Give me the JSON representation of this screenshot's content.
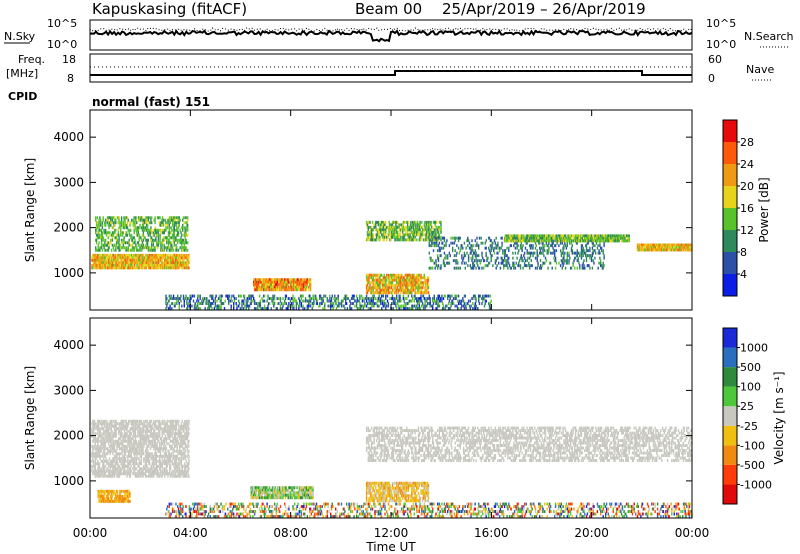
{
  "header": {
    "radar": "Kapuskasing (fitACF)",
    "beam": "Beam 00",
    "dates": "25/Apr/2019 – 26/Apr/2019"
  },
  "mini_panels": {
    "nsky_label": "N.Sky",
    "nsearch_label": "N.Search",
    "nsky_ticks": [
      "10^5",
      "10^0"
    ],
    "freq_label_1": "Freq.",
    "freq_label_2": "[MHz]",
    "freq_ticks": [
      "18",
      "8"
    ],
    "nave_label": "Nave",
    "nave_ticks": [
      "60",
      "0"
    ],
    "cpid_label": "CPID",
    "cpid_value": "normal (fast) 151"
  },
  "chart_data": [
    {
      "type": "heatmap",
      "name": "power",
      "ylabel": "Slant Range [km]",
      "xlabel": "Time UT",
      "yticks": [
        1000,
        2000,
        3000,
        4000
      ],
      "ylim": [
        180,
        4600
      ],
      "xlim_hours": [
        0,
        24
      ],
      "xticks": [
        "00:00",
        "04:00",
        "08:00",
        "12:00",
        "16:00",
        "20:00",
        "00:00"
      ],
      "colorbar": {
        "label": "Power [dB]",
        "ticks": [
          "4",
          "8",
          "12",
          "16",
          "20",
          "24",
          "28"
        ],
        "range": [
          0,
          30
        ],
        "colors": [
          "#0a1ee6",
          "#2a50a8",
          "#2e8a5a",
          "#58c22a",
          "#e6d41a",
          "#f09a14",
          "#ff5a0a",
          "#e60a0a"
        ]
      },
      "regions": [
        {
          "t0": 0.05,
          "t1": 3.95,
          "r0": 1080,
          "r1": 1420,
          "v0": 14,
          "v1": 24,
          "density": 0.85
        },
        {
          "t0": 0.2,
          "t1": 3.9,
          "r0": 1450,
          "r1": 2250,
          "v0": 8,
          "v1": 16,
          "density": 0.45
        },
        {
          "t0": 6.5,
          "t1": 8.8,
          "r0": 600,
          "r1": 880,
          "v0": 14,
          "v1": 28,
          "density": 0.85
        },
        {
          "t0": 11.0,
          "t1": 13.5,
          "r0": 520,
          "r1": 980,
          "v0": 12,
          "v1": 26,
          "density": 0.7
        },
        {
          "t0": 11.0,
          "t1": 14.0,
          "r0": 1700,
          "r1": 2150,
          "v0": 8,
          "v1": 18,
          "density": 0.6
        },
        {
          "t0": 13.5,
          "t1": 20.5,
          "r0": 1100,
          "r1": 1800,
          "v0": 4,
          "v1": 12,
          "density": 0.25
        },
        {
          "t0": 16.5,
          "t1": 21.5,
          "r0": 1700,
          "r1": 1850,
          "v0": 8,
          "v1": 18,
          "density": 0.85
        },
        {
          "t0": 21.8,
          "t1": 24.0,
          "r0": 1480,
          "r1": 1650,
          "v0": 14,
          "v1": 24,
          "density": 0.95
        },
        {
          "t0": 3.0,
          "t1": 16.0,
          "r0": 180,
          "r1": 520,
          "v0": 2,
          "v1": 14,
          "density": 0.35
        }
      ]
    },
    {
      "type": "heatmap",
      "name": "velocity",
      "ylabel": "Slant Range [km]",
      "xlabel": "Time UT",
      "yticks": [
        1000,
        2000,
        3000,
        4000
      ],
      "ylim": [
        180,
        4600
      ],
      "xlim_hours": [
        0,
        24
      ],
      "xticks": [
        "00:00",
        "04:00",
        "08:00",
        "12:00",
        "16:00",
        "20:00",
        "00:00"
      ],
      "colorbar": {
        "label": "Velocity [m s⁻¹]",
        "ticks": [
          "1000",
          "500",
          "100",
          "25",
          "-25",
          "-100",
          "-500",
          "-1000"
        ],
        "colors": [
          "#1a2ad6",
          "#2a6ec0",
          "#2e8a3c",
          "#4cc83a",
          "#c8c8c0",
          "#f0c010",
          "#f08a10",
          "#ff3c0a",
          "#e00a0a"
        ]
      },
      "regions": [
        {
          "t0": 0.05,
          "t1": 3.95,
          "r0": 1080,
          "r1": 2350,
          "v0": 4,
          "v1": 4,
          "density": 0.6
        },
        {
          "t0": 0.3,
          "t1": 1.6,
          "r0": 550,
          "r1": 800,
          "v0": 5,
          "v1": 6,
          "density": 0.7
        },
        {
          "t0": 6.4,
          "t1": 8.9,
          "r0": 600,
          "r1": 880,
          "v0": 2,
          "v1": 5,
          "density": 0.8
        },
        {
          "t0": 11.0,
          "t1": 13.5,
          "r0": 520,
          "r1": 980,
          "v0": 4,
          "v1": 6,
          "density": 0.6
        },
        {
          "t0": 11.0,
          "t1": 24.0,
          "r0": 1450,
          "r1": 2200,
          "v0": 4,
          "v1": 4,
          "density": 0.45
        },
        {
          "t0": 3.0,
          "t1": 24.0,
          "r0": 180,
          "r1": 520,
          "v0": 0,
          "v1": 8,
          "density": 0.3
        }
      ]
    }
  ]
}
